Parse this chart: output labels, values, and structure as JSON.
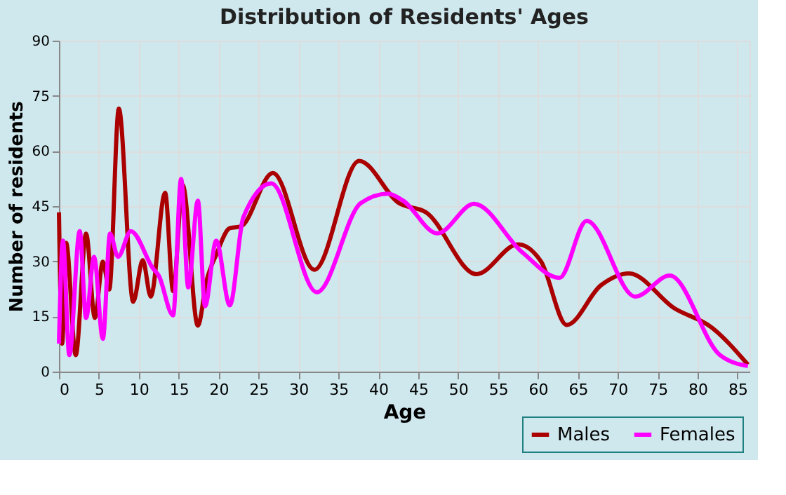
{
  "chart_data": {
    "type": "line",
    "title": "Distribution of Residents' Ages",
    "xlabel": "Age",
    "ylabel": "Number of residents",
    "xlim": [
      0,
      86.5
    ],
    "xticks": [
      0,
      5,
      10,
      15,
      20,
      25,
      30,
      35,
      40,
      45,
      50,
      55,
      60,
      65,
      70,
      75,
      80,
      85
    ],
    "ylim": [
      0,
      90
    ],
    "yticks": [
      0,
      15,
      30,
      45,
      60,
      75,
      90
    ],
    "grid": true,
    "legend": "bottom right",
    "marker": "none",
    "line_style": "solid",
    "series": [
      {
        "name": "Males",
        "color": "#aa0000",
        "x": [
          0,
          0.4,
          0.9,
          2.1,
          3.4,
          4.5,
          5.5,
          6.3,
          7.5,
          9.3,
          10.5,
          11.5,
          13.3,
          14.3,
          15.5,
          17.4,
          18.5,
          19.7,
          21.4,
          22.8,
          26.8,
          32,
          37.6,
          42.6,
          46,
          52.3,
          57.5,
          60.4,
          63.6,
          67.9,
          71.4,
          77.1,
          81.7,
          86.3
        ],
        "values": [
          43.3,
          7.6,
          35,
          4.5,
          37.5,
          14.6,
          29.9,
          22.3,
          71.5,
          19,
          30.3,
          20.4,
          48.6,
          21.9,
          50.7,
          12.5,
          24.8,
          31.8,
          39,
          39.5,
          54,
          27.7,
          57.3,
          45.8,
          43.3,
          26.5,
          34.6,
          29.9,
          12.7,
          23.5,
          26.7,
          17.2,
          12.1,
          1.9
        ]
      },
      {
        "name": "Females",
        "color": "#ff00ff",
        "x": [
          0,
          0.5,
          1.3,
          2.6,
          3.4,
          4.4,
          5.5,
          6.4,
          7.4,
          9,
          11.8,
          12.5,
          14.3,
          15.3,
          16.2,
          17.4,
          18.3,
          19.7,
          21.4,
          23.1,
          26.6,
          32.3,
          37.8,
          41.2,
          43.1,
          47.4,
          52,
          58,
          62.7,
          66.1,
          72.2,
          76.5,
          82.8,
          86.3
        ],
        "values": [
          7.6,
          35.6,
          4.5,
          38.2,
          14.6,
          31.2,
          8.9,
          37.5,
          31.2,
          38.2,
          28,
          26.1,
          15.3,
          52.4,
          22.9,
          46.5,
          17.8,
          35.6,
          18,
          42,
          51.2,
          21.6,
          45.8,
          48.4,
          46.5,
          37.6,
          45.6,
          32.5,
          25.5,
          41,
          20.4,
          26.1,
          4.5,
          1.5
        ]
      }
    ]
  }
}
